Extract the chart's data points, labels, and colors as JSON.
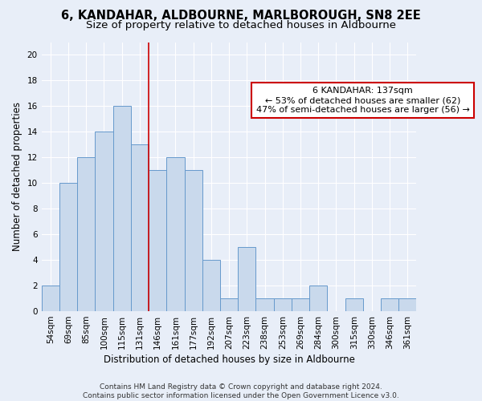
{
  "title": "6, KANDAHAR, ALDBOURNE, MARLBOROUGH, SN8 2EE",
  "subtitle": "Size of property relative to detached houses in Aldbourne",
  "xlabel": "Distribution of detached houses by size in Aldbourne",
  "ylabel": "Number of detached properties",
  "categories": [
    "54sqm",
    "69sqm",
    "85sqm",
    "100sqm",
    "115sqm",
    "131sqm",
    "146sqm",
    "161sqm",
    "177sqm",
    "192sqm",
    "207sqm",
    "223sqm",
    "238sqm",
    "253sqm",
    "269sqm",
    "284sqm",
    "300sqm",
    "315sqm",
    "330sqm",
    "346sqm",
    "361sqm"
  ],
  "values": [
    2,
    10,
    12,
    14,
    16,
    13,
    11,
    12,
    11,
    4,
    1,
    5,
    1,
    1,
    1,
    2,
    0,
    1,
    0,
    1,
    1
  ],
  "bar_color": "#c9d9ec",
  "bar_edge_color": "#6699cc",
  "background_color": "#e8eef8",
  "grid_color": "#ffffff",
  "vline_x": 5.5,
  "vline_color": "#cc0000",
  "annotation_text": "6 KANDAHAR: 137sqm\n← 53% of detached houses are smaller (62)\n47% of semi-detached houses are larger (56) →",
  "annotation_box_color": "#ffffff",
  "annotation_box_edge_color": "#cc0000",
  "footer": "Contains HM Land Registry data © Crown copyright and database right 2024.\nContains public sector information licensed under the Open Government Licence v3.0.",
  "ylim": [
    0,
    21
  ],
  "yticks": [
    0,
    2,
    4,
    6,
    8,
    10,
    12,
    14,
    16,
    18,
    20
  ],
  "title_fontsize": 10.5,
  "subtitle_fontsize": 9.5,
  "label_fontsize": 8.5,
  "tick_fontsize": 7.5,
  "annotation_fontsize": 8,
  "footer_fontsize": 6.5
}
